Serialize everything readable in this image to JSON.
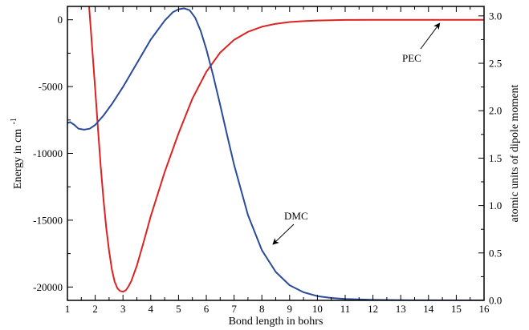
{
  "chart_data": {
    "type": "line",
    "xlabel": "Bond length in bohrs",
    "ylabel_left": "Energy in cm",
    "ylabel_left_sup": "-1",
    "ylabel_right": "atomic units of dipole moment",
    "xlim": [
      1,
      16
    ],
    "ylim_left": [
      -21000,
      1000
    ],
    "ylim_right": [
      0,
      3.1
    ],
    "x_ticks": [
      1,
      2,
      3,
      4,
      5,
      6,
      7,
      8,
      9,
      10,
      11,
      12,
      13,
      14,
      15,
      16
    ],
    "y_left_ticks": [
      0,
      -5000,
      -10000,
      -15000,
      -20000
    ],
    "y_right_ticks": [
      0.0,
      0.5,
      1.0,
      1.5,
      2.0,
      2.5,
      3.0
    ],
    "grid": false,
    "legend": "none",
    "series": [
      {
        "axis": "left",
        "color": "#dd2222",
        "x": [
          1.78,
          1.85,
          1.92,
          2.0,
          2.1,
          2.2,
          2.3,
          2.4,
          2.5,
          2.6,
          2.7,
          2.8,
          2.9,
          3.0,
          3.1,
          3.2,
          3.3,
          3.5,
          3.75,
          4.0,
          4.5,
          5.0,
          5.5,
          6.0,
          6.5,
          7.0,
          7.5,
          8.0,
          8.5,
          9.0,
          9.5,
          10.0,
          10.5,
          11.0,
          12.0,
          13.0,
          14.0,
          15.0,
          16.0
        ],
        "y": [
          1000,
          -950,
          -2900,
          -5200,
          -8200,
          -11000,
          -13500,
          -15600,
          -17300,
          -18700,
          -19600,
          -20100,
          -20300,
          -20350,
          -20250,
          -19950,
          -19550,
          -18400,
          -16600,
          -14700,
          -11400,
          -8500,
          -5900,
          -3900,
          -2450,
          -1500,
          -900,
          -520,
          -300,
          -170,
          -100,
          -55,
          -30,
          -15,
          -5,
          -2,
          -1,
          0,
          0
        ]
      },
      {
        "axis": "right",
        "color": "#2a4a9a",
        "x": [
          1.0,
          1.1,
          1.25,
          1.4,
          1.6,
          1.8,
          2.0,
          2.3,
          2.6,
          3.0,
          3.5,
          4.0,
          4.5,
          4.8,
          5.0,
          5.2,
          5.4,
          5.6,
          5.8,
          6.0,
          6.25,
          6.5,
          6.75,
          7.0,
          7.5,
          8.0,
          8.5,
          9.0,
          9.5,
          10.0,
          10.5,
          11.0,
          12.0,
          13.0,
          14.0,
          15.0,
          16.0
        ],
        "y": [
          1.87,
          1.88,
          1.85,
          1.81,
          1.8,
          1.81,
          1.85,
          1.95,
          2.07,
          2.25,
          2.5,
          2.75,
          2.95,
          3.04,
          3.07,
          3.08,
          3.06,
          2.98,
          2.84,
          2.65,
          2.37,
          2.06,
          1.74,
          1.43,
          0.9,
          0.53,
          0.3,
          0.16,
          0.085,
          0.045,
          0.025,
          0.014,
          0.005,
          0.002,
          0.001,
          0.0,
          0.0
        ]
      }
    ],
    "annotations": [
      {
        "text": "PEC",
        "at": [
          14.4,
          -150
        ],
        "axis": "left"
      },
      {
        "text": "DMC",
        "at": [
          8.4,
          -16800
        ],
        "axis": "left"
      }
    ]
  }
}
